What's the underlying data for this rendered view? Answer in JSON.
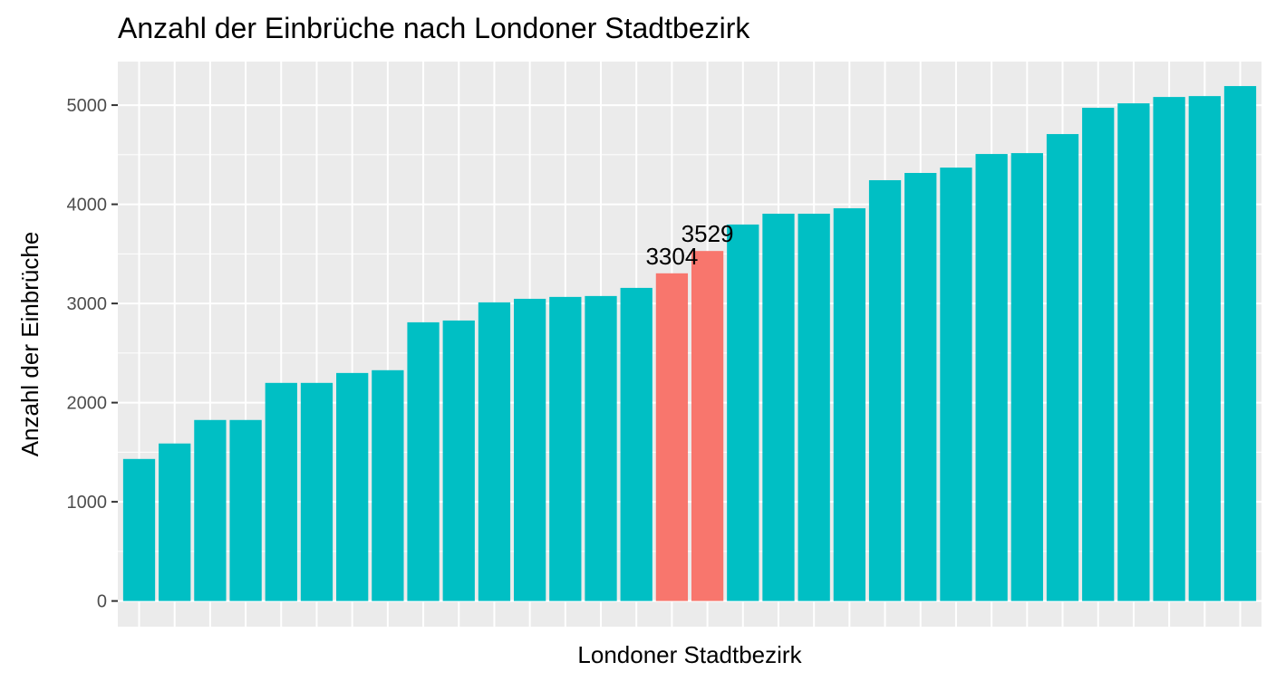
{
  "chart_data": {
    "type": "bar",
    "title": "Anzahl der Einbrüche nach Londoner Stadtbezirk",
    "x_label": "Londoner Stadtbezirk",
    "y_label": "Anzahl der Einbrüche",
    "categories": [
      null,
      null,
      null,
      null,
      null,
      null,
      null,
      null,
      null,
      null,
      null,
      null,
      null,
      null,
      null,
      null,
      null,
      null,
      null,
      null,
      null,
      null,
      null,
      null,
      null,
      null,
      null,
      null,
      null,
      null,
      null,
      null
    ],
    "values": [
      1432,
      1588,
      1825,
      1825,
      2199,
      2199,
      2299,
      2327,
      2810,
      2828,
      3011,
      3047,
      3066,
      3075,
      3157,
      3304,
      3529,
      3796,
      3905,
      3905,
      3960,
      4243,
      4316,
      4370,
      4507,
      4516,
      4708,
      4973,
      5018,
      5082,
      5091,
      5192
    ],
    "colors": [
      "#00bfc4",
      "#00bfc4",
      "#00bfc4",
      "#00bfc4",
      "#00bfc4",
      "#00bfc4",
      "#00bfc4",
      "#00bfc4",
      "#00bfc4",
      "#00bfc4",
      "#00bfc4",
      "#00bfc4",
      "#00bfc4",
      "#00bfc4",
      "#00bfc4",
      "#f8766d",
      "#f8766d",
      "#00bfc4",
      "#00bfc4",
      "#00bfc4",
      "#00bfc4",
      "#00bfc4",
      "#00bfc4",
      "#00bfc4",
      "#00bfc4",
      "#00bfc4",
      "#00bfc4",
      "#00bfc4",
      "#00bfc4",
      "#00bfc4",
      "#00bfc4",
      "#00bfc4"
    ],
    "labeled": [
      15,
      16
    ],
    "ylim": [
      -259,
      5439
    ],
    "yticks": [
      0,
      1000,
      2000,
      3000,
      4000,
      5000
    ],
    "grid": true
  }
}
